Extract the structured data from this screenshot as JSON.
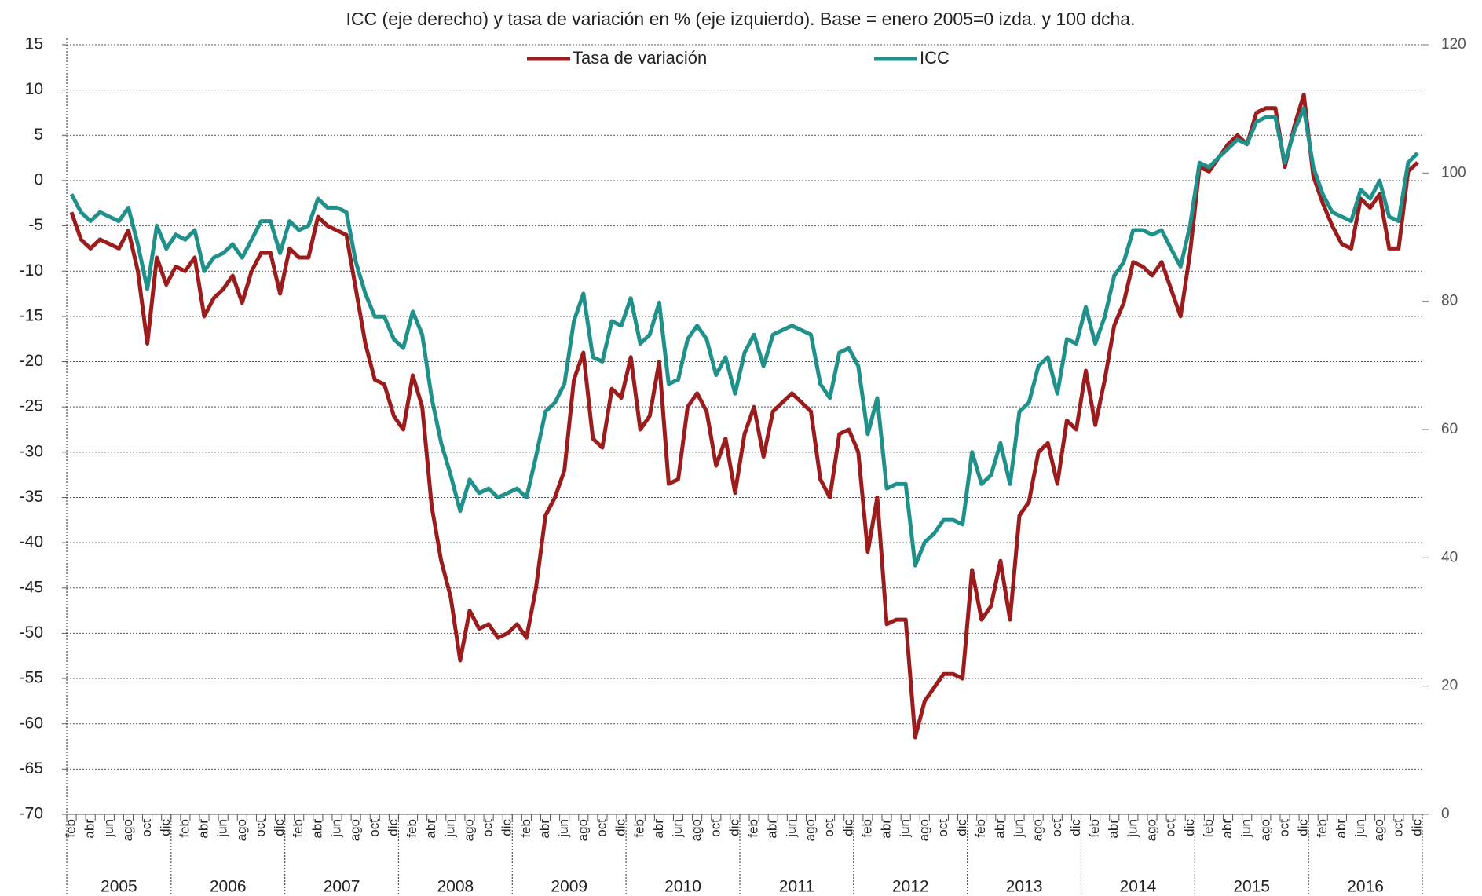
{
  "chart_data": {
    "type": "line",
    "title": "ICC (eje derecho) y tasa de variación en % (eje izquierdo). Base = enero 2005=0 izda. y 100 dcha.",
    "categories": [
      "feb",
      null,
      "abr",
      null,
      "jun",
      null,
      "ago",
      null,
      "oct",
      null,
      "dic",
      null,
      "feb",
      null,
      "abr",
      null,
      "jun",
      null,
      "ago",
      null,
      "oct",
      null,
      "dic",
      null,
      "feb",
      null,
      "abr",
      null,
      "jun",
      null,
      "ago",
      null,
      "oct",
      null,
      "dic",
      null,
      "feb",
      null,
      "abr",
      null,
      "jun",
      null,
      "ago",
      null,
      "oct",
      null,
      "dic",
      null,
      "feb",
      null,
      "abr",
      null,
      "jun",
      null,
      "ago",
      null,
      "oct",
      null,
      "dic",
      null,
      "feb",
      null,
      "abr",
      null,
      "jun",
      null,
      "ago",
      null,
      "oct",
      null,
      "dic",
      null,
      "feb",
      null,
      "abr",
      null,
      "jun",
      null,
      "ago",
      null,
      "oct",
      null,
      "dic",
      null,
      "feb",
      null,
      "abr",
      null,
      "jun",
      null,
      "ago",
      null,
      "oct",
      null,
      "dic",
      null,
      "feb",
      null,
      "abr",
      null,
      "jun",
      null,
      "ago",
      null,
      "oct",
      null,
      "dic",
      null,
      "feb",
      null,
      "abr",
      null,
      "jun",
      null,
      "ago",
      null,
      "oct",
      null,
      "dic",
      null,
      "feb",
      null,
      "abr",
      null,
      "jun",
      null,
      "ago",
      null,
      "oct",
      null,
      "dic",
      null,
      "feb",
      null,
      "abr",
      null,
      "jun",
      null,
      "ago",
      null,
      "oct",
      null,
      "dic"
    ],
    "years": [
      "2005",
      "2006",
      "2007",
      "2008",
      "2009",
      "2010",
      "2011",
      "2012",
      "2013",
      "2014",
      "2015",
      "2016"
    ],
    "series": [
      {
        "name": "Tasa de variación",
        "color": "#9b1c1c",
        "values": [
          -3.5,
          -6.5,
          -7.5,
          -6.5,
          -7,
          -7.5,
          -5.5,
          -10,
          -18,
          -8.5,
          -11.5,
          -9.5,
          -10,
          -8.5,
          -15,
          -13,
          -12,
          -10.5,
          -13.5,
          -10,
          -8,
          -8,
          -12.5,
          -7.5,
          -8.5,
          -8.5,
          -4,
          -5,
          -5.5,
          -6,
          -12,
          -18,
          -22,
          -22.5,
          -26,
          -27.5,
          -21.5,
          -25,
          -36,
          -42,
          -46,
          -53,
          -47.5,
          -49.5,
          -49,
          -50.5,
          -50,
          -49,
          -50.5,
          -45,
          -37,
          -35,
          -32,
          -22,
          -19,
          -28.5,
          -29.5,
          -23,
          -24,
          -19.5,
          -27.5,
          -26,
          -20,
          -33.5,
          -33,
          -25,
          -23.5,
          -25.5,
          -31.5,
          -28.5,
          -34.5,
          -28,
          -25,
          -30.5,
          -25.5,
          -24.5,
          -23.5,
          -24.5,
          -25.5,
          -33,
          -35,
          -28,
          -27.5,
          -30,
          -41,
          -35,
          -49,
          -48.5,
          -48.5,
          -61.5,
          -57.5,
          -56,
          -54.5,
          -54.5,
          -55,
          -43,
          -48.5,
          -47,
          -42,
          -48.5,
          -37,
          -35.5,
          -30,
          -29,
          -33.5,
          -26.5,
          -27.5,
          -21,
          -27,
          -22,
          -16,
          -13.5,
          -9,
          -9.5,
          -10.5,
          -9,
          -12,
          -15,
          -8,
          1.5,
          1,
          2.5,
          4,
          5,
          4,
          7.5,
          8,
          8,
          1.5,
          6,
          9.5,
          0.5,
          -2.5,
          -5,
          -7,
          -7.5,
          -2,
          -3,
          -1.5,
          -7.5,
          -7.5,
          1,
          2
        ]
      },
      {
        "name": "ICC",
        "color": "#20908a",
        "axis": "y2",
        "values": [
          96.7,
          93.9,
          92.5,
          93.9,
          93.2,
          92.5,
          94.6,
          88.9,
          81.9,
          91.8,
          88.2,
          90.4,
          89.6,
          91.1,
          84.7,
          86.8,
          87.5,
          88.9,
          86.8,
          89.6,
          92.5,
          92.5,
          87.5,
          92.5,
          91.1,
          91.8,
          96,
          94.6,
          94.6,
          93.9,
          86.1,
          81.2,
          77.6,
          77.6,
          74.1,
          72.7,
          78.4,
          74.8,
          64.9,
          57.9,
          52.9,
          47.3,
          52.2,
          50.1,
          50.8,
          49.4,
          50.1,
          50.8,
          49.4,
          55.8,
          62.8,
          64.2,
          67.1,
          76.9,
          81.2,
          71.3,
          70.6,
          76.9,
          76.2,
          80.5,
          73.4,
          74.8,
          79.8,
          67.1,
          67.8,
          74.1,
          76.2,
          74.1,
          68.5,
          71.3,
          65.6,
          72,
          74.8,
          69.9,
          74.8,
          75.5,
          76.2,
          75.5,
          74.8,
          67.1,
          64.9,
          72,
          72.7,
          69.9,
          59.3,
          64.9,
          50.8,
          51.5,
          51.5,
          38.8,
          42.4,
          43.8,
          45.9,
          45.9,
          45.2,
          56.5,
          51.5,
          52.9,
          57.9,
          51.5,
          62.8,
          64.2,
          69.9,
          71.3,
          65.6,
          74.1,
          73.4,
          79.1,
          73.4,
          77.6,
          84,
          86.1,
          91.1,
          91.1,
          90.4,
          91.1,
          88.2,
          85.4,
          91.8,
          101.6,
          100.9,
          102.4,
          103.8,
          105.2,
          104.5,
          108,
          108.7,
          108.7,
          101.6,
          106.6,
          110.1,
          100.9,
          96.7,
          93.9,
          93.2,
          92.5,
          97.4,
          96,
          98.8,
          93.2,
          92.5,
          101.6,
          103.1
        ]
      }
    ],
    "ylim": [
      -70,
      15
    ],
    "yticks": [
      -70,
      -65,
      -60,
      -55,
      -50,
      -45,
      -40,
      -35,
      -30,
      -25,
      -20,
      -15,
      -10,
      -5,
      0,
      5,
      10,
      15
    ],
    "y2lim": [
      0,
      120
    ],
    "y2ticks": [
      0,
      20,
      40,
      60,
      80,
      100,
      120
    ],
    "grid": true,
    "legend": "top"
  }
}
